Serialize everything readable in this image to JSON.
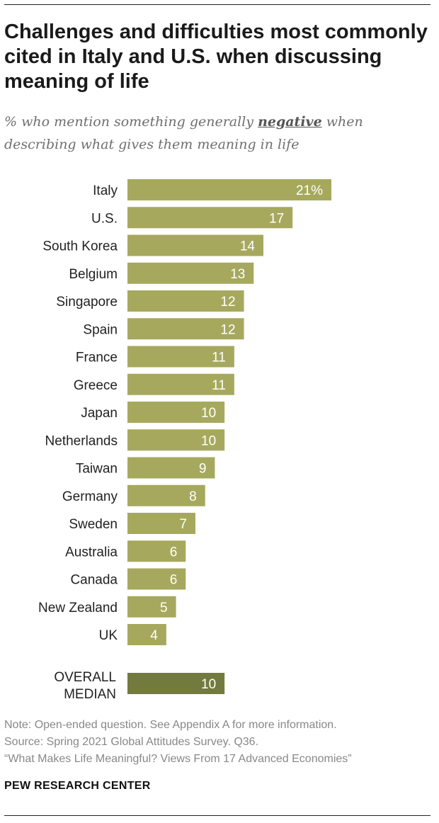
{
  "header": {
    "title": "Challenges and difficulties most commonly cited in Italy and U.S. when discussing meaning of life",
    "subtitle_before": "% who mention something generally ",
    "subtitle_emphasis": "negative",
    "subtitle_after": " when describing what gives them meaning in life"
  },
  "colors": {
    "bar": "#a6a95d",
    "median_bar": "#737a3e",
    "bar_text": "#ffffff",
    "label_text": "#222222"
  },
  "chart_data": {
    "type": "bar",
    "orientation": "horizontal",
    "categories": [
      "Italy",
      "U.S.",
      "South Korea",
      "Belgium",
      "Singapore",
      "Spain",
      "France",
      "Greece",
      "Japan",
      "Netherlands",
      "Taiwan",
      "Germany",
      "Sweden",
      "Australia",
      "Canada",
      "New Zealand",
      "UK"
    ],
    "values": [
      21,
      17,
      14,
      13,
      12,
      12,
      11,
      11,
      10,
      10,
      9,
      8,
      7,
      6,
      6,
      5,
      4
    ],
    "value_labels": [
      "21%",
      "17",
      "14",
      "13",
      "12",
      "12",
      "11",
      "11",
      "10",
      "10",
      "9",
      "8",
      "7",
      "6",
      "6",
      "5",
      "4"
    ],
    "median": {
      "label_lines": [
        "OVERALL",
        "MEDIAN"
      ],
      "value": 10,
      "value_label": "10"
    },
    "xlim": [
      0,
      21
    ],
    "grid": false,
    "legend": "none"
  },
  "footer": {
    "note": "Note: Open-ended question. See Appendix A for more information.",
    "source": "Source: Spring 2021 Global Attitudes Survey. Q36.",
    "report": "“What Makes Life Meaningful? Views From 17 Advanced Economies”",
    "brand": "PEW RESEARCH CENTER"
  }
}
